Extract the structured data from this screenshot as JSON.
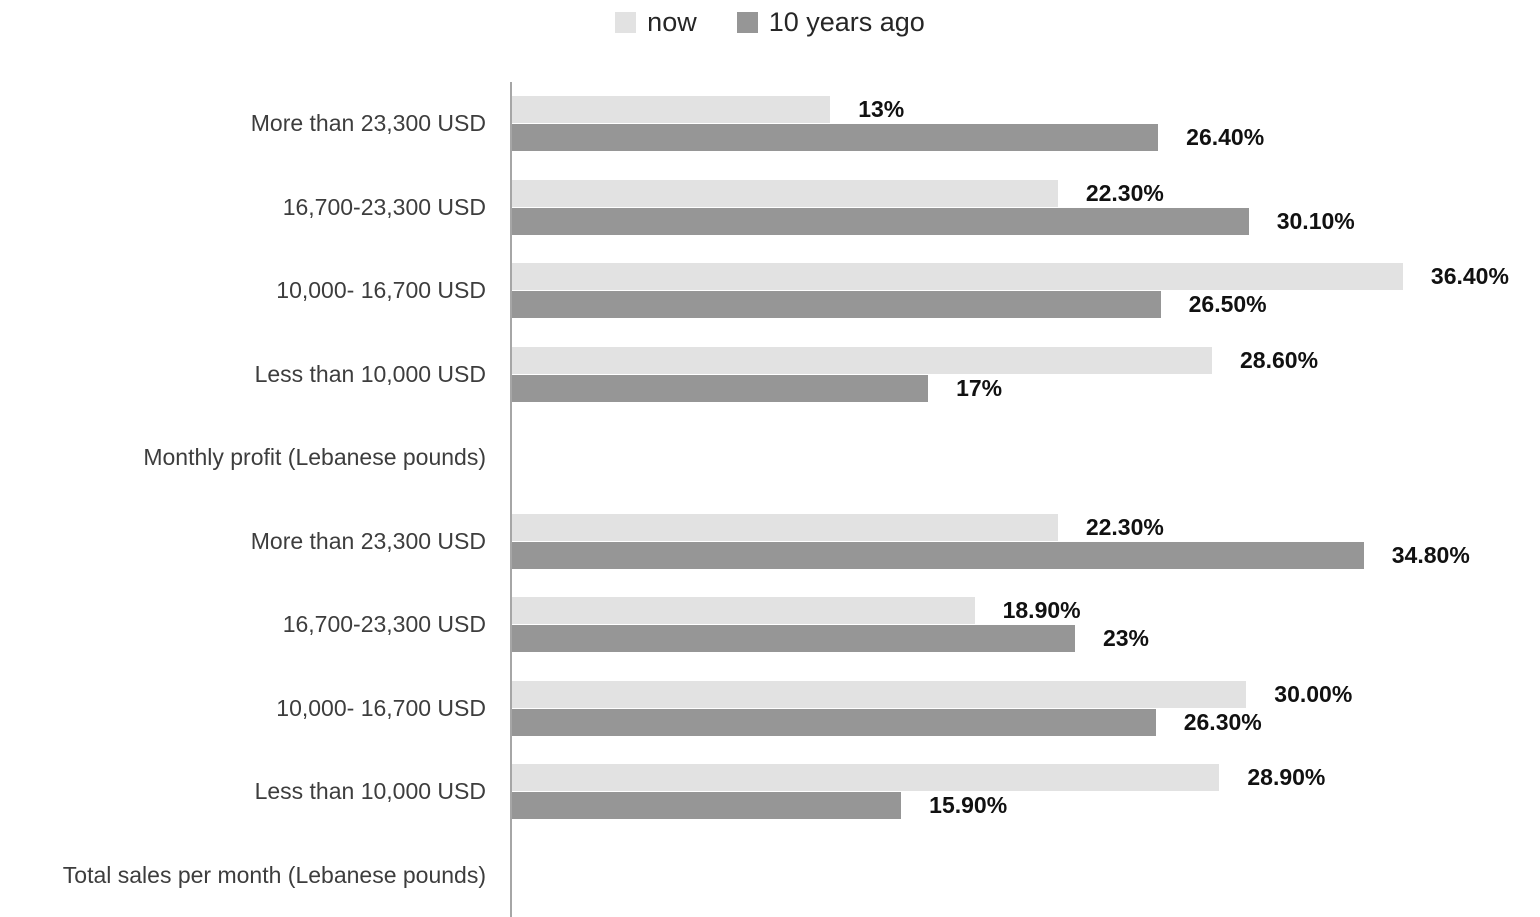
{
  "legend": {
    "position": "top",
    "items": [
      {
        "label": "now",
        "color": "#e2e2e2"
      },
      {
        "label": "10 years ago",
        "color": "#969696"
      }
    ]
  },
  "chart_data": {
    "type": "bar",
    "orientation": "horizontal",
    "title": "",
    "xlabel": "",
    "ylabel": "",
    "axis_max": 42,
    "xlim": [
      0,
      42
    ],
    "grid": false,
    "legend_position": "top",
    "series_names": [
      "now",
      "10 years ago"
    ],
    "series_keys": [
      "now",
      "ago"
    ],
    "colors": {
      "now": "#e2e2e2",
      "ago": "#969696"
    },
    "axis_line_color": "#a6a6a6",
    "sections": [
      {
        "section_label": "Monthly profit (Lebanese pounds)",
        "categories": [
          "More than 23,300 USD",
          "16,700-23,300 USD",
          "10,000- 16,700 USD",
          "Less than 10,000 USD"
        ],
        "series": [
          {
            "name": "now",
            "values": [
              13,
              22.3,
              36.4,
              28.6
            ],
            "labels": [
              "13%",
              "22.30%",
              "36.40%",
              "28.60%"
            ]
          },
          {
            "name": "10 years ago",
            "values": [
              26.4,
              30.1,
              26.5,
              17
            ],
            "labels": [
              "26.40%",
              "30.10%",
              "26.50%",
              "17%"
            ]
          }
        ]
      },
      {
        "section_label": "Total sales per month (Lebanese pounds)",
        "categories": [
          "More than 23,300 USD",
          "16,700-23,300 USD",
          "10,000- 16,700 USD",
          "Less than 10,000 USD"
        ],
        "series": [
          {
            "name": "now",
            "values": [
              22.3,
              18.9,
              30.0,
              28.9
            ],
            "labels": [
              "22.30%",
              "18.90%",
              "30.00%",
              "28.90%"
            ]
          },
          {
            "name": "10 years ago",
            "values": [
              34.8,
              23,
              26.3,
              15.9
            ],
            "labels": [
              "34.80%",
              "23%",
              "26.30%",
              "15.90%"
            ]
          }
        ]
      }
    ]
  }
}
